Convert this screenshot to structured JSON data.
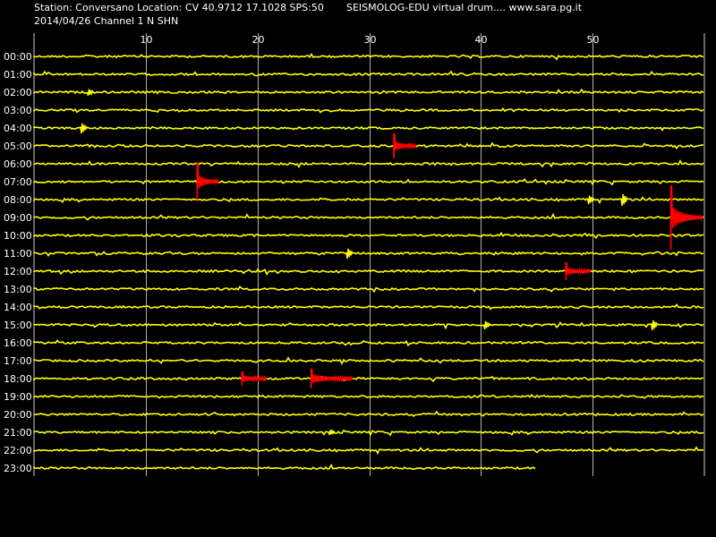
{
  "header": {
    "station_line": "Station: Conversano Location: CV 40.9712 17.1028 SPS:50",
    "date_line": "2014/04/26  Channel 1 N SHN",
    "center_text": "SEISMOLOG-EDU virtual drum.... www.sara.pg.it"
  },
  "colors": {
    "background": "#000000",
    "trace": "#ffff00",
    "event": "#ff0000",
    "grid": "#ffffff",
    "text": "#ffffff"
  },
  "chart_data": {
    "type": "line",
    "title": "",
    "xlabel": "",
    "ylabel": "",
    "xlim": [
      0,
      60
    ],
    "xticks": [
      10,
      20,
      30,
      40,
      50
    ],
    "grid": true,
    "row_labels": [
      "00:00",
      "01:00",
      "02:00",
      "03:00",
      "04:00",
      "05:00",
      "06:00",
      "07:00",
      "08:00",
      "09:00",
      "10:00",
      "11:00",
      "12:00",
      "13:00",
      "14:00",
      "15:00",
      "16:00",
      "17:00",
      "18:00",
      "19:00",
      "20:00",
      "21:00",
      "22:00",
      "23:00"
    ],
    "last_row_end_minute": 45,
    "events": [
      {
        "row": "05:00",
        "start": 32.2,
        "end": 34.2,
        "amplitude": 14
      },
      {
        "row": "07:00",
        "start": 14.6,
        "end": 16.5,
        "amplitude": 22
      },
      {
        "row": "09:00",
        "start": 57.0,
        "end": 59.8,
        "amplitude": 36
      },
      {
        "row": "12:00",
        "start": 47.6,
        "end": 49.8,
        "amplitude": 10
      },
      {
        "row": "18:00",
        "start": 18.6,
        "end": 20.8,
        "amplitude": 8
      },
      {
        "row": "18:00",
        "start": 24.8,
        "end": 28.5,
        "amplitude": 11
      }
    ],
    "spikes": [
      {
        "row": "02:00",
        "minute": 5.0,
        "amplitude": 4
      },
      {
        "row": "04:00",
        "minute": 4.4,
        "amplitude": 6
      },
      {
        "row": "08:00",
        "minute": 49.8,
        "amplitude": 5
      },
      {
        "row": "08:00",
        "minute": 52.8,
        "amplitude": 7
      },
      {
        "row": "11:00",
        "minute": 28.2,
        "amplitude": 6
      },
      {
        "row": "15:00",
        "minute": 40.5,
        "amplitude": 5
      },
      {
        "row": "15:00",
        "minute": 55.5,
        "amplitude": 6
      },
      {
        "row": "21:00",
        "minute": 26.6,
        "amplitude": 3
      }
    ]
  }
}
